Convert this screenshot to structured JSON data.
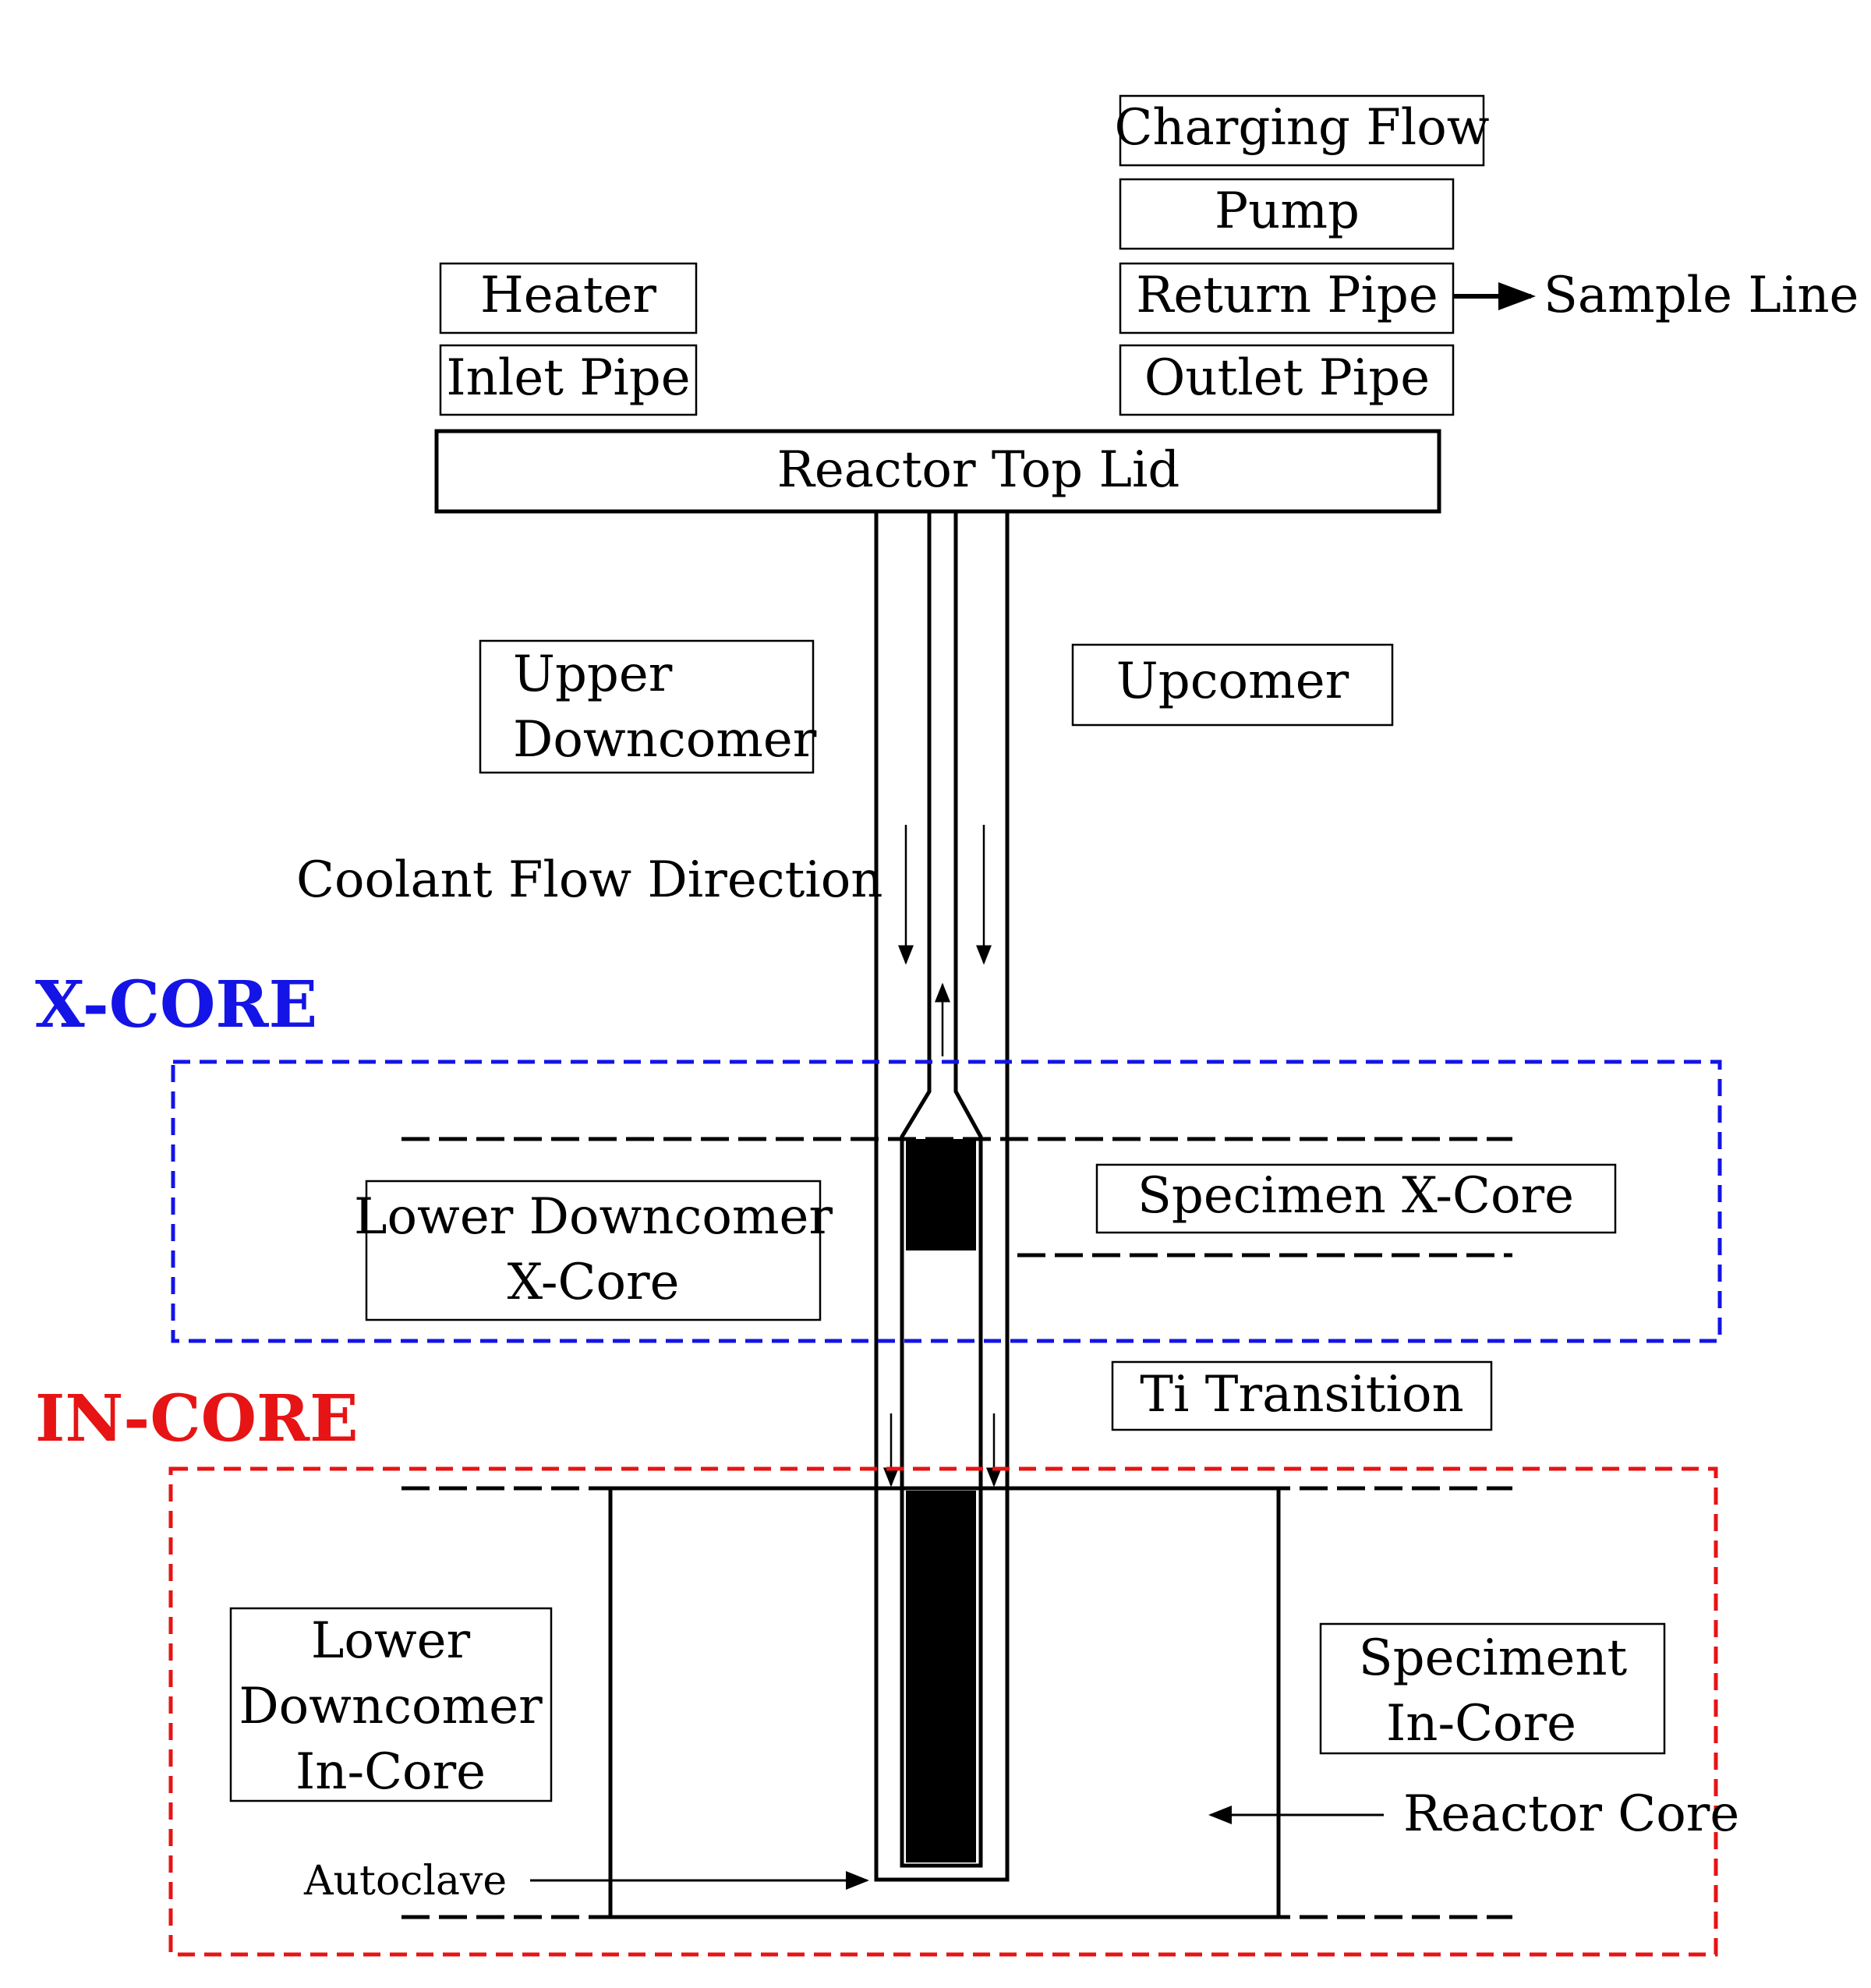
{
  "colors": {
    "x_core": "#1414e6",
    "in_core": "#e61414",
    "line": "#000000"
  },
  "zones": {
    "x_core": "X-CORE",
    "in_core": "IN-CORE"
  },
  "boxes": {
    "charging_flow": "Charging Flow",
    "pump": "Pump",
    "heater": "Heater",
    "return_pipe": "Return Pipe",
    "inlet_pipe": "Inlet Pipe",
    "outlet_pipe": "Outlet Pipe",
    "reactor_top_lid": "Reactor Top Lid",
    "upper_downcomer": [
      "Upper",
      "Downcomer"
    ],
    "upcomer": "Upcomer",
    "lower_downcomer_xcore": [
      "Lower Downcomer",
      "X-Core"
    ],
    "specimen_xcore": "Specimen X-Core",
    "ti_transition": "Ti Transition",
    "lower_downcomer_incore": [
      "Lower",
      "Downcomer",
      "In-Core"
    ],
    "speciment_incore": [
      "Speciment",
      "In-Core"
    ]
  },
  "labels": {
    "sample_line": "Sample Line",
    "coolant_flow_direction": "Coolant Flow Direction",
    "reactor_core": "Reactor Core",
    "autoclave": "Autoclave"
  }
}
